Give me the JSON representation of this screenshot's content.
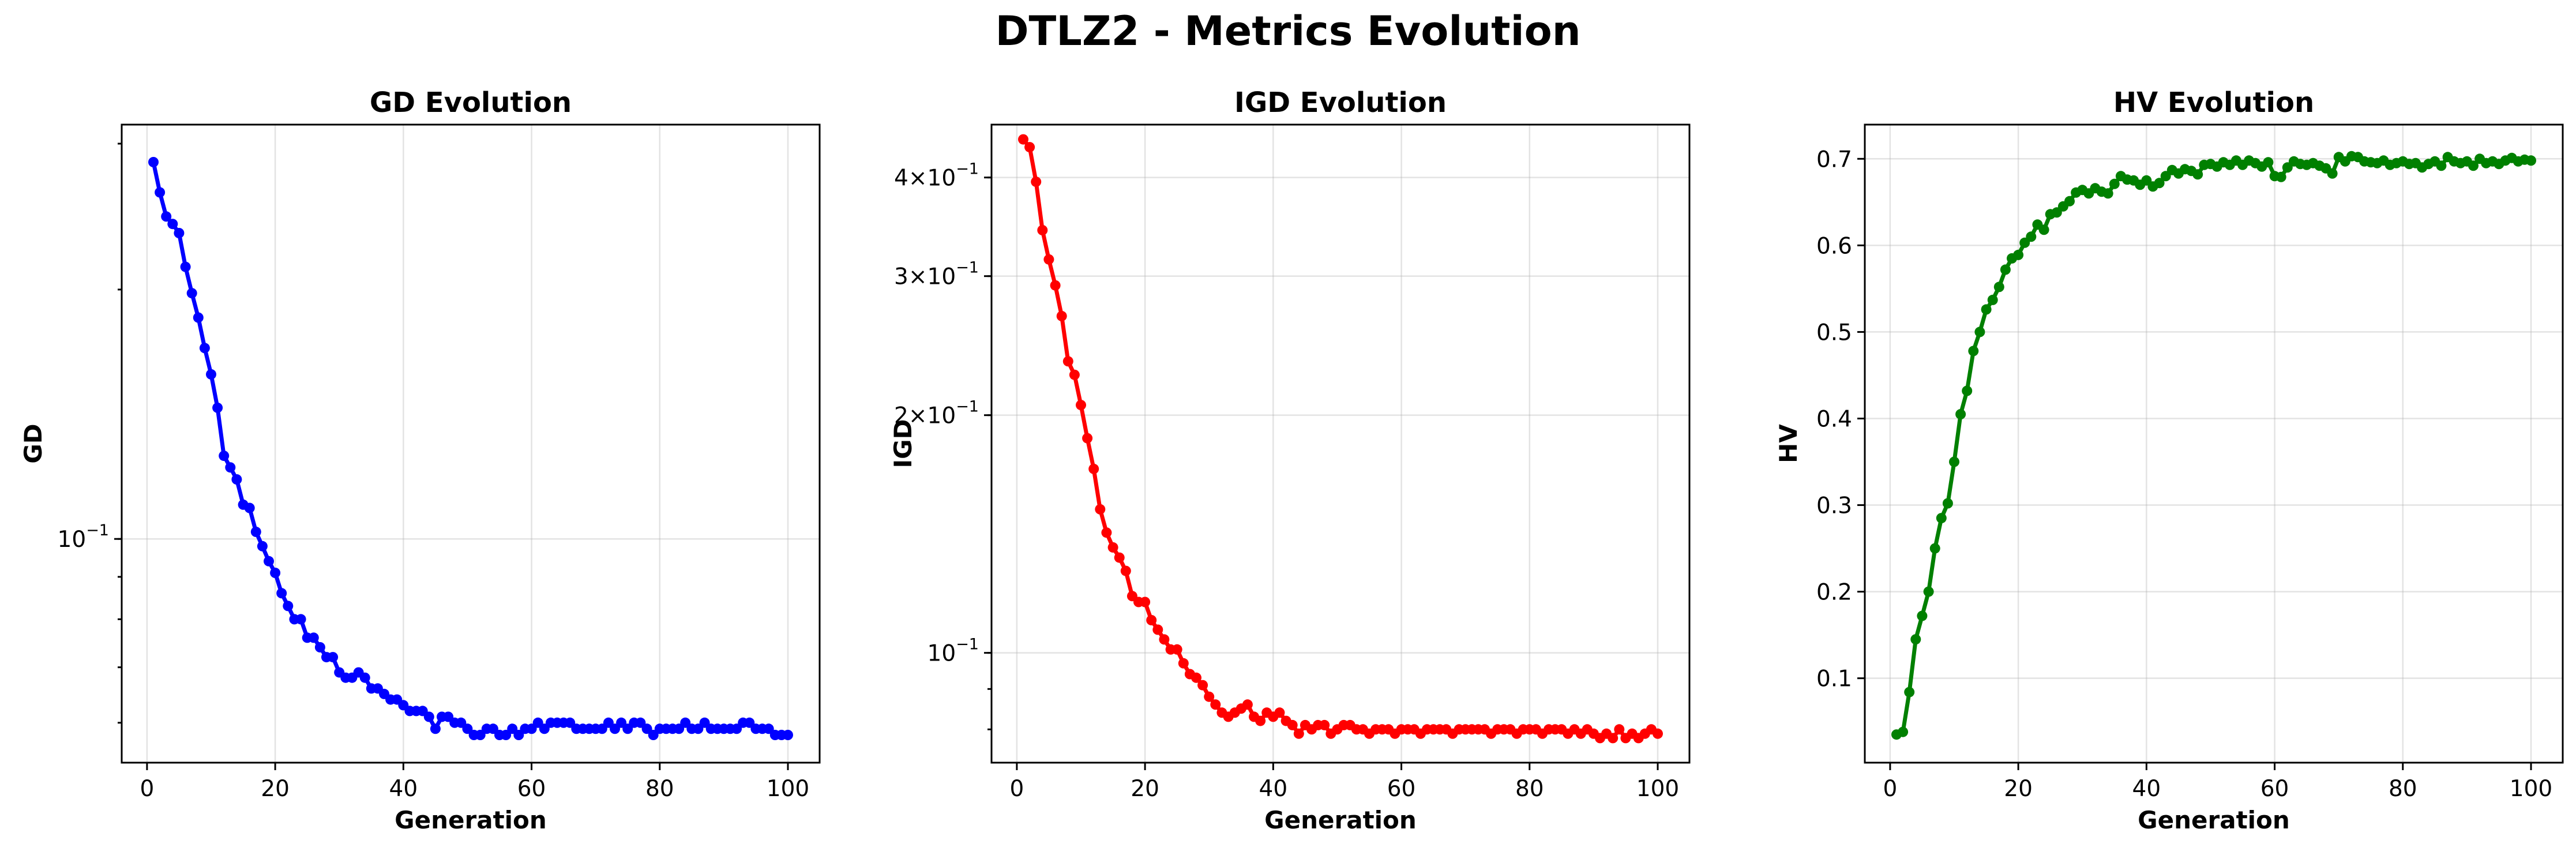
{
  "figure": {
    "title": "DTLZ2 - Metrics Evolution"
  },
  "chart_data": [
    {
      "type": "line",
      "title": "GD Evolution",
      "xlabel": "Generation",
      "ylabel": "GD",
      "yscale": "log",
      "xlim": [
        -3.95,
        104.95
      ],
      "ylim": [
        0.0537,
        0.3163
      ],
      "xticks": [
        0,
        20,
        40,
        60,
        80,
        100
      ],
      "yticks": [
        {
          "value": 0.1,
          "label_base": "10",
          "label_exp": "−1"
        }
      ],
      "grid": true,
      "color": "#0000ff",
      "series": [
        {
          "x": [
            1,
            2,
            3,
            4,
            5,
            6,
            7,
            8,
            9,
            10,
            11,
            12,
            13,
            14,
            15,
            16,
            17,
            18,
            19,
            20,
            21,
            22,
            23,
            24,
            25,
            26,
            27,
            28,
            29,
            30,
            31,
            32,
            33,
            34,
            35,
            36,
            37,
            38,
            39,
            40,
            41,
            42,
            43,
            44,
            45,
            46,
            47,
            48,
            49,
            50,
            51,
            52,
            53,
            54,
            55,
            56,
            57,
            58,
            59,
            60,
            61,
            62,
            63,
            64,
            65,
            66,
            67,
            68,
            69,
            70,
            71,
            72,
            73,
            74,
            75,
            76,
            77,
            78,
            79,
            80,
            81,
            82,
            83,
            84,
            85,
            86,
            87,
            88,
            89,
            90,
            91,
            92,
            93,
            94,
            95,
            96,
            97,
            98,
            99,
            100
          ],
          "y": [
            0.285,
            0.262,
            0.245,
            0.24,
            0.234,
            0.213,
            0.198,
            0.185,
            0.17,
            0.158,
            0.144,
            0.126,
            0.122,
            0.118,
            0.11,
            0.109,
            0.102,
            0.098,
            0.094,
            0.091,
            0.086,
            0.083,
            0.08,
            0.08,
            0.076,
            0.076,
            0.074,
            0.072,
            0.072,
            0.069,
            0.068,
            0.068,
            0.069,
            0.068,
            0.066,
            0.066,
            0.065,
            0.064,
            0.064,
            0.063,
            0.062,
            0.062,
            0.062,
            0.061,
            0.059,
            0.061,
            0.061,
            0.06,
            0.06,
            0.059,
            0.058,
            0.058,
            0.059,
            0.059,
            0.058,
            0.058,
            0.059,
            0.058,
            0.059,
            0.059,
            0.06,
            0.059,
            0.06,
            0.06,
            0.06,
            0.06,
            0.059,
            0.059,
            0.059,
            0.059,
            0.059,
            0.06,
            0.059,
            0.06,
            0.059,
            0.06,
            0.06,
            0.059,
            0.058,
            0.059,
            0.059,
            0.059,
            0.059,
            0.06,
            0.059,
            0.059,
            0.06,
            0.059,
            0.059,
            0.059,
            0.059,
            0.059,
            0.06,
            0.06,
            0.059,
            0.059,
            0.059,
            0.058,
            0.058,
            0.058
          ]
        }
      ]
    },
    {
      "type": "line",
      "title": "IGD Evolution",
      "xlabel": "Generation",
      "ylabel": "IGD",
      "yscale": "log",
      "xlim": [
        -3.95,
        104.95
      ],
      "ylim": [
        0.0726,
        0.4667
      ],
      "xticks": [
        0,
        20,
        40,
        60,
        80,
        100
      ],
      "yticks": [
        {
          "value": 0.4,
          "label_mant": "4",
          "label_base": "10",
          "label_exp": "−1"
        },
        {
          "value": 0.3,
          "label_mant": "3",
          "label_base": "10",
          "label_exp": "−1"
        },
        {
          "value": 0.2,
          "label_mant": "2",
          "label_base": "10",
          "label_exp": "−1"
        },
        {
          "value": 0.1,
          "label_base": "10",
          "label_exp": "−1"
        }
      ],
      "grid": true,
      "color": "#ff0000",
      "series": [
        {
          "x": [
            1,
            2,
            3,
            4,
            5,
            6,
            7,
            8,
            9,
            10,
            11,
            12,
            13,
            14,
            15,
            16,
            17,
            18,
            19,
            20,
            21,
            22,
            23,
            24,
            25,
            26,
            27,
            28,
            29,
            30,
            31,
            32,
            33,
            34,
            35,
            36,
            37,
            38,
            39,
            40,
            41,
            42,
            43,
            44,
            45,
            46,
            47,
            48,
            49,
            50,
            51,
            52,
            53,
            54,
            55,
            56,
            57,
            58,
            59,
            60,
            61,
            62,
            63,
            64,
            65,
            66,
            67,
            68,
            69,
            70,
            71,
            72,
            73,
            74,
            75,
            76,
            77,
            78,
            79,
            80,
            81,
            82,
            83,
            84,
            85,
            86,
            87,
            88,
            89,
            90,
            91,
            92,
            93,
            94,
            95,
            96,
            97,
            98,
            99,
            100
          ],
          "y": [
            0.447,
            0.437,
            0.395,
            0.343,
            0.315,
            0.292,
            0.267,
            0.234,
            0.225,
            0.206,
            0.187,
            0.171,
            0.152,
            0.142,
            0.136,
            0.132,
            0.127,
            0.118,
            0.116,
            0.116,
            0.11,
            0.107,
            0.104,
            0.101,
            0.101,
            0.097,
            0.094,
            0.093,
            0.091,
            0.088,
            0.086,
            0.084,
            0.083,
            0.084,
            0.085,
            0.086,
            0.083,
            0.082,
            0.084,
            0.083,
            0.084,
            0.082,
            0.081,
            0.079,
            0.081,
            0.08,
            0.081,
            0.081,
            0.079,
            0.08,
            0.081,
            0.081,
            0.08,
            0.08,
            0.079,
            0.08,
            0.08,
            0.08,
            0.079,
            0.08,
            0.08,
            0.08,
            0.079,
            0.08,
            0.08,
            0.08,
            0.08,
            0.079,
            0.08,
            0.08,
            0.08,
            0.08,
            0.08,
            0.079,
            0.08,
            0.08,
            0.08,
            0.079,
            0.08,
            0.08,
            0.08,
            0.079,
            0.08,
            0.08,
            0.08,
            0.079,
            0.08,
            0.079,
            0.08,
            0.079,
            0.078,
            0.079,
            0.078,
            0.08,
            0.078,
            0.079,
            0.078,
            0.079,
            0.08,
            0.079
          ]
        }
      ]
    },
    {
      "type": "line",
      "title": "HV Evolution",
      "xlabel": "Generation",
      "ylabel": "HV",
      "yscale": "linear",
      "xlim": [
        -3.95,
        104.95
      ],
      "ylim": [
        0.0025,
        0.7395
      ],
      "xticks": [
        0,
        20,
        40,
        60,
        80,
        100
      ],
      "yticks": [
        {
          "value": 0.1,
          "label": "0.1"
        },
        {
          "value": 0.2,
          "label": "0.2"
        },
        {
          "value": 0.3,
          "label": "0.3"
        },
        {
          "value": 0.4,
          "label": "0.4"
        },
        {
          "value": 0.5,
          "label": "0.5"
        },
        {
          "value": 0.6,
          "label": "0.6"
        },
        {
          "value": 0.7,
          "label": "0.7"
        }
      ],
      "grid": true,
      "color": "#008000",
      "series": [
        {
          "x": [
            1,
            2,
            3,
            4,
            5,
            6,
            7,
            8,
            9,
            10,
            11,
            12,
            13,
            14,
            15,
            16,
            17,
            18,
            19,
            20,
            21,
            22,
            23,
            24,
            25,
            26,
            27,
            28,
            29,
            30,
            31,
            32,
            33,
            34,
            35,
            36,
            37,
            38,
            39,
            40,
            41,
            42,
            43,
            44,
            45,
            46,
            47,
            48,
            49,
            50,
            51,
            52,
            53,
            54,
            55,
            56,
            57,
            58,
            59,
            60,
            61,
            62,
            63,
            64,
            65,
            66,
            67,
            68,
            69,
            70,
            71,
            72,
            73,
            74,
            75,
            76,
            77,
            78,
            79,
            80,
            81,
            82,
            83,
            84,
            85,
            86,
            87,
            88,
            89,
            90,
            91,
            92,
            93,
            94,
            95,
            96,
            97,
            98,
            99,
            100
          ],
          "y": [
            0.035,
            0.038,
            0.084,
            0.145,
            0.172,
            0.2,
            0.25,
            0.285,
            0.302,
            0.35,
            0.405,
            0.432,
            0.478,
            0.5,
            0.526,
            0.537,
            0.552,
            0.572,
            0.585,
            0.589,
            0.603,
            0.61,
            0.624,
            0.618,
            0.636,
            0.638,
            0.645,
            0.651,
            0.661,
            0.664,
            0.66,
            0.666,
            0.662,
            0.66,
            0.671,
            0.68,
            0.676,
            0.675,
            0.67,
            0.675,
            0.668,
            0.672,
            0.68,
            0.687,
            0.683,
            0.688,
            0.686,
            0.682,
            0.693,
            0.694,
            0.691,
            0.696,
            0.693,
            0.698,
            0.693,
            0.698,
            0.695,
            0.691,
            0.696,
            0.68,
            0.679,
            0.69,
            0.697,
            0.694,
            0.693,
            0.695,
            0.692,
            0.689,
            0.683,
            0.702,
            0.697,
            0.703,
            0.702,
            0.697,
            0.696,
            0.695,
            0.698,
            0.693,
            0.695,
            0.697,
            0.694,
            0.695,
            0.69,
            0.694,
            0.697,
            0.692,
            0.702,
            0.697,
            0.695,
            0.697,
            0.692,
            0.7,
            0.695,
            0.697,
            0.694,
            0.698,
            0.701,
            0.697,
            0.699,
            0.698
          ]
        }
      ]
    }
  ]
}
